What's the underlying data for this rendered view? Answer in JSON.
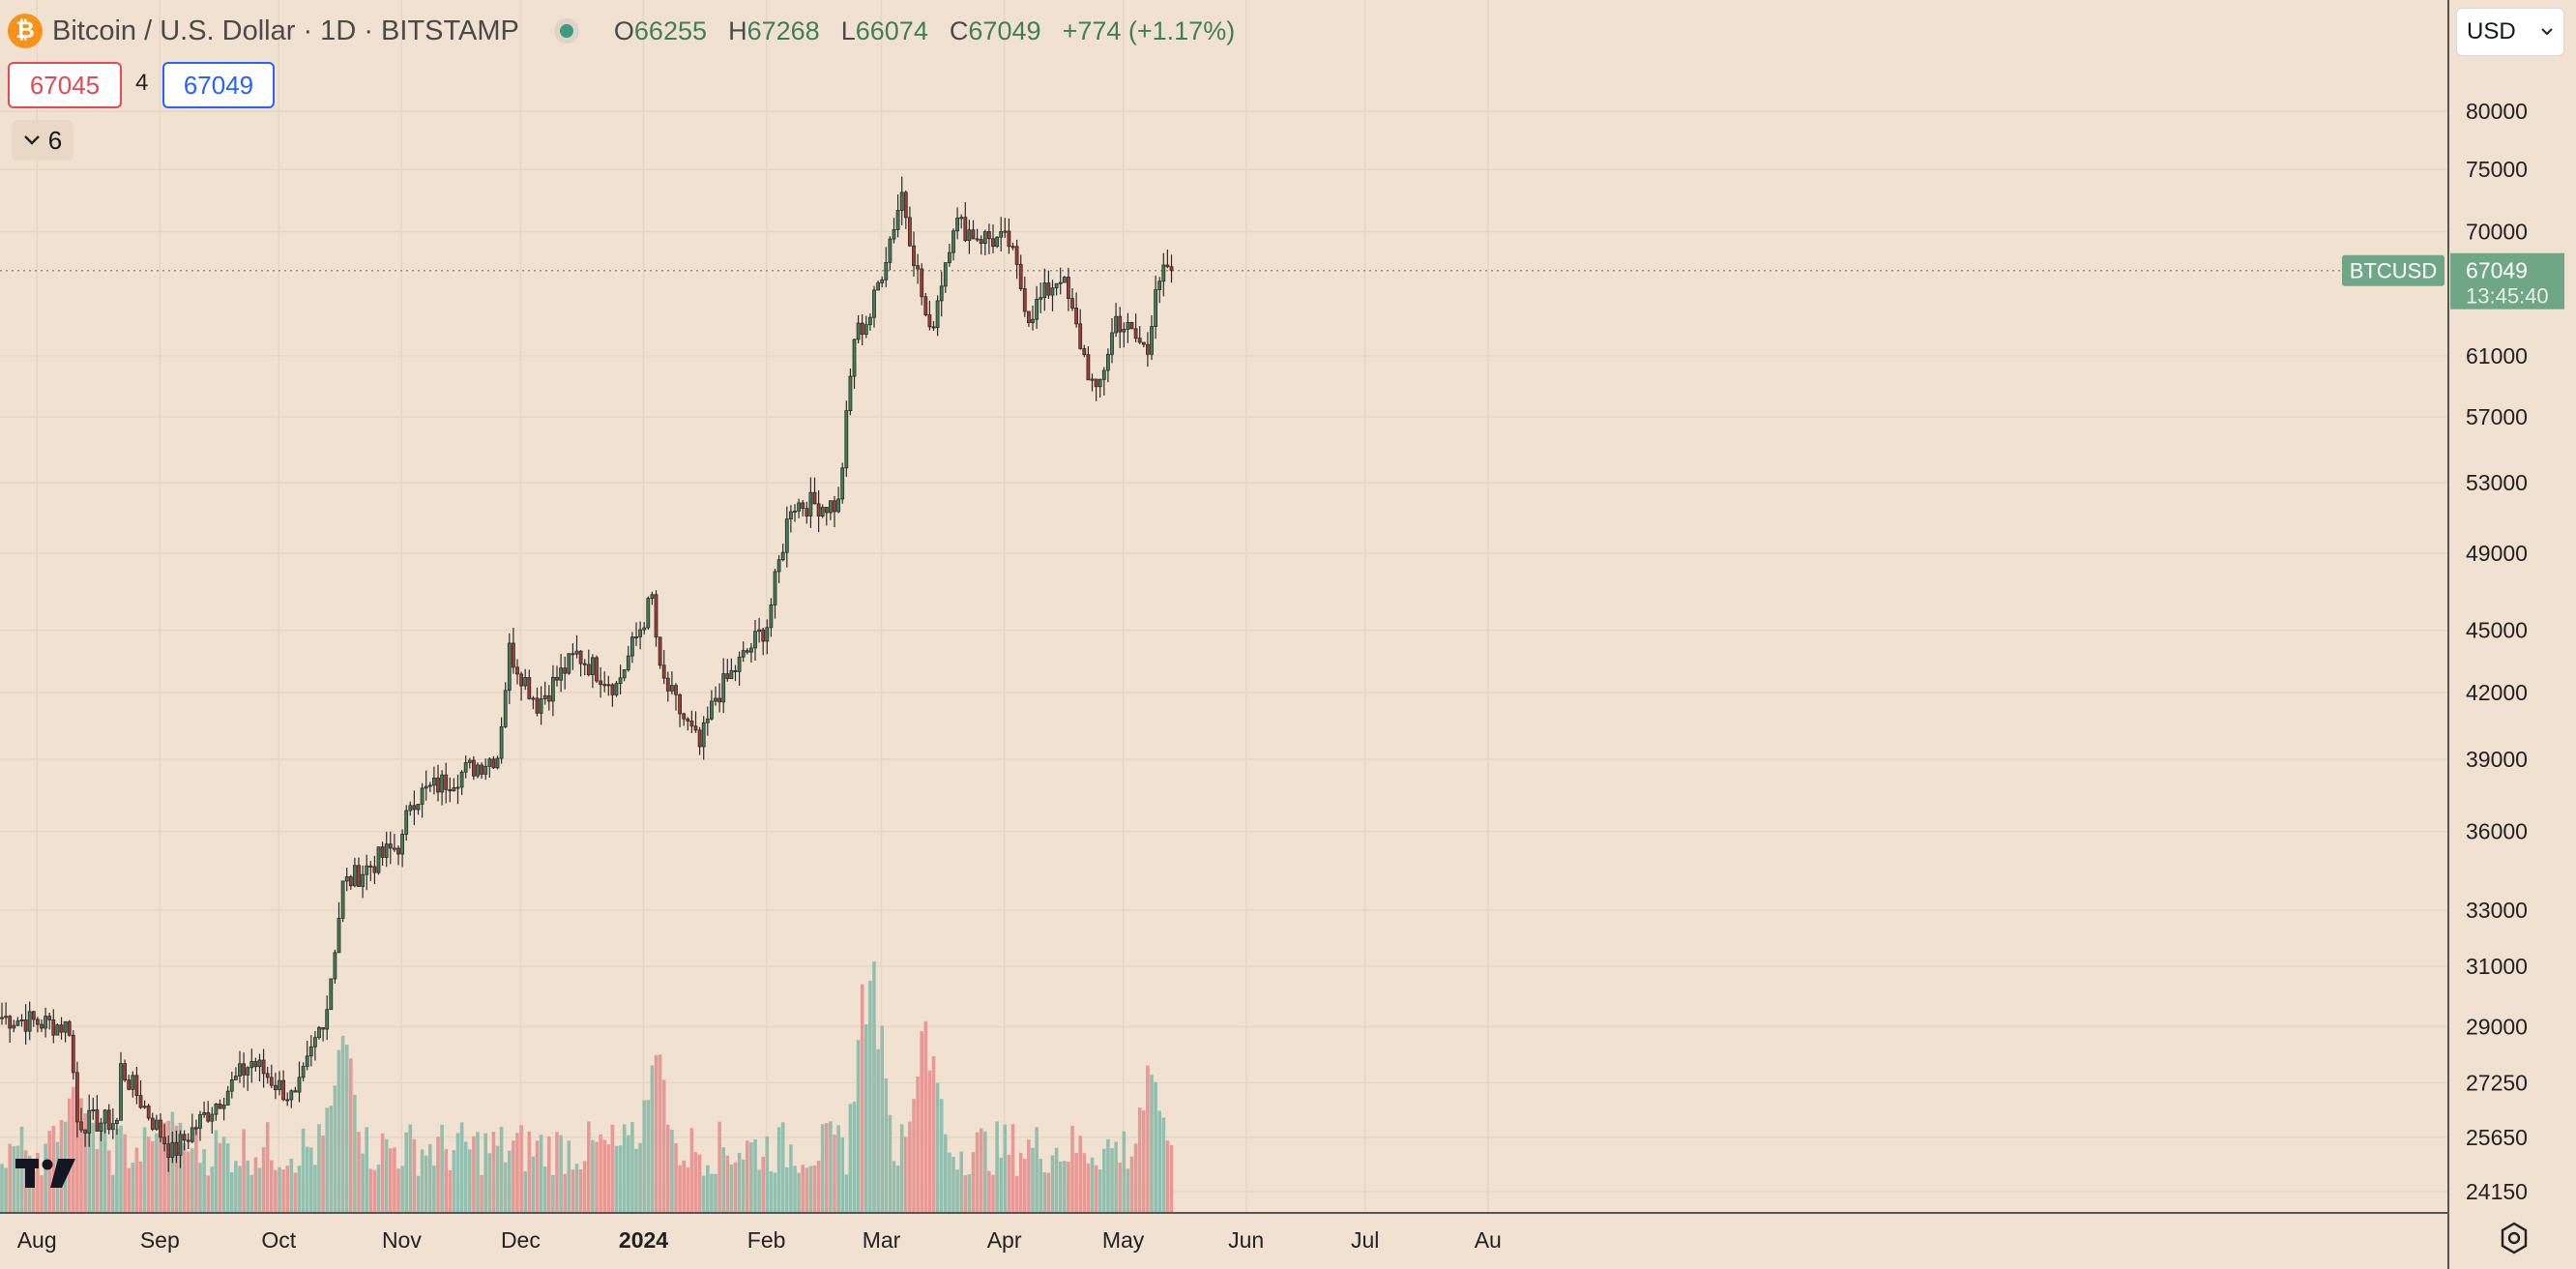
{
  "header": {
    "logo_icon": "bitcoin-logo-icon",
    "title": "Bitcoin / U.S. Dollar · 1D · BITSTAMP",
    "market_status_icon": "market-open-dot-icon",
    "ohlc": {
      "o_label": "O",
      "o_value": "66255",
      "h_label": "H",
      "h_value": "67268",
      "l_label": "L",
      "l_value": "66074",
      "c_label": "C",
      "c_value": "67049",
      "change": "+774 (+1.17%)"
    }
  },
  "trade": {
    "bid": "67045",
    "spread": "4",
    "ask": "67049"
  },
  "indicators_toggle": {
    "icon": "chevron-down-icon",
    "count": "6"
  },
  "currency": {
    "label": "USD",
    "icon": "chevron-down-icon"
  },
  "price_label": {
    "symbol": "BTCUSD",
    "price": "67049",
    "countdown": "13:45:40"
  },
  "footer": {
    "brand_icon": "tradingview-logo-icon",
    "settings_icon": "settings-icon"
  },
  "colors": {
    "background": "#f1e1d1",
    "up": "#3f7f56",
    "down": "#a63a2e",
    "volume_up": "#94bfae",
    "volume_down": "#e79a95",
    "price_tag": "#6fa686"
  },
  "chart_data": {
    "type": "candlestick",
    "symbol": "BTCUSD",
    "timeframe": "1D",
    "x_ticks": [
      "Aug",
      "Sep",
      "Oct",
      "Nov",
      "Dec",
      "2024",
      "Feb",
      "Mar",
      "Apr",
      "May",
      "Jun",
      "Jul",
      "Au"
    ],
    "y_ticks": [
      80000,
      75000,
      70000,
      61000,
      57000,
      53000,
      49000,
      45000,
      42000,
      39000,
      36000,
      33000,
      31000,
      29000,
      27250,
      25650,
      24150
    ],
    "y_scale": "log",
    "ylim": [
      24150,
      82000
    ],
    "legend": "none",
    "grid": true,
    "last_price": 67049,
    "anchors": [
      {
        "date": "2023-07-30",
        "close": 29300
      },
      {
        "date": "2023-08-16",
        "close": 29000
      },
      {
        "date": "2023-08-18",
        "close": 26100
      },
      {
        "date": "2023-08-28",
        "close": 26100
      },
      {
        "date": "2023-08-29",
        "close": 27700
      },
      {
        "date": "2023-09-11",
        "close": 25200
      },
      {
        "date": "2023-10-01",
        "close": 27900
      },
      {
        "date": "2023-10-12",
        "close": 26700
      },
      {
        "date": "2023-10-20",
        "close": 29700
      },
      {
        "date": "2023-10-24",
        "close": 33900
      },
      {
        "date": "2023-11-08",
        "close": 35600
      },
      {
        "date": "2023-11-10",
        "close": 37300
      },
      {
        "date": "2023-12-02",
        "close": 39200
      },
      {
        "date": "2023-12-05",
        "close": 44000
      },
      {
        "date": "2023-12-12",
        "close": 41500
      },
      {
        "date": "2023-12-22",
        "close": 43800
      },
      {
        "date": "2024-01-01",
        "close": 42300
      },
      {
        "date": "2024-01-10",
        "close": 46600
      },
      {
        "date": "2024-01-12",
        "close": 42800
      },
      {
        "date": "2024-01-22",
        "close": 39500
      },
      {
        "date": "2024-01-26",
        "close": 41800
      },
      {
        "date": "2024-02-08",
        "close": 45300
      },
      {
        "date": "2024-02-14",
        "close": 51800
      },
      {
        "date": "2024-02-26",
        "close": 51700
      },
      {
        "date": "2024-03-01",
        "close": 62300
      },
      {
        "date": "2024-03-05",
        "close": 63800
      },
      {
        "date": "2024-03-13",
        "close": 73100
      },
      {
        "date": "2024-03-20",
        "close": 62300
      },
      {
        "date": "2024-03-26",
        "close": 70800
      },
      {
        "date": "2024-04-01",
        "close": 69700
      },
      {
        "date": "2024-04-09",
        "close": 69100
      },
      {
        "date": "2024-04-14",
        "close": 63800
      },
      {
        "date": "2024-04-22",
        "close": 66800
      },
      {
        "date": "2024-05-01",
        "close": 58200
      },
      {
        "date": "2024-05-06",
        "close": 63600
      },
      {
        "date": "2024-05-14",
        "close": 61300
      },
      {
        "date": "2024-05-16",
        "close": 66300
      },
      {
        "date": "2024-05-20",
        "close": 67049
      }
    ],
    "volume_note_max_date": "2024-03-05",
    "volume": [
      {
        "date": "2023-08-17",
        "value": 0.55
      },
      {
        "date": "2023-09-11",
        "value": 0.42
      },
      {
        "date": "2023-10-24",
        "value": 0.72
      },
      {
        "date": "2024-01-11",
        "value": 0.62
      },
      {
        "date": "2024-03-05",
        "value": 1.0
      },
      {
        "date": "2024-03-19",
        "value": 0.75
      },
      {
        "date": "2024-05-15",
        "value": 0.55
      }
    ]
  }
}
